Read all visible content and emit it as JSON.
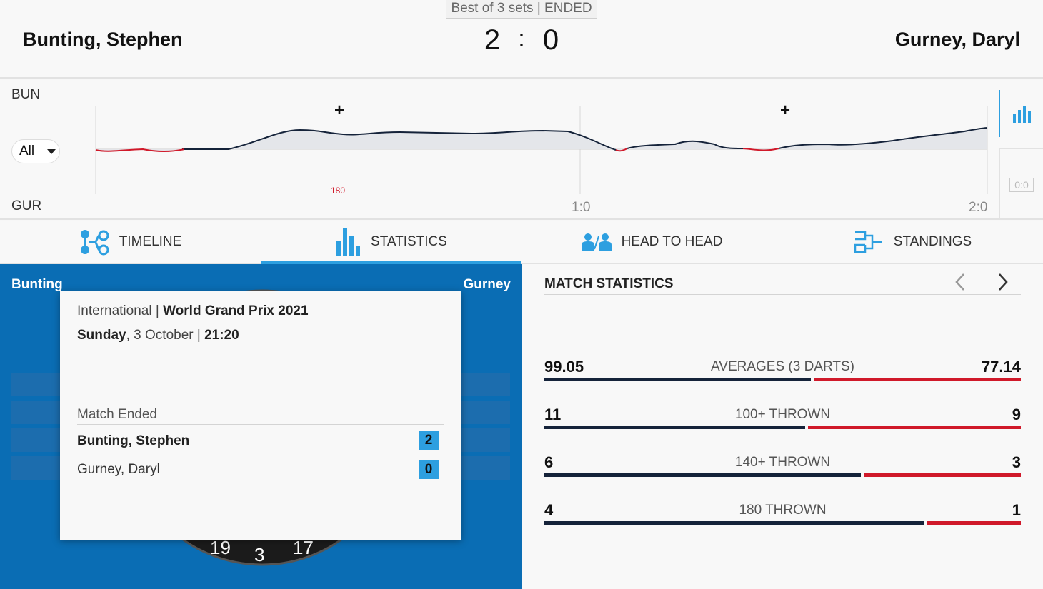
{
  "header": {
    "format_badge": "Best of 3 sets | ENDED",
    "home_name": "Bunting, Stephen",
    "away_name": "Gurney, Daryl",
    "home_score": "2",
    "separator": ":",
    "away_score": "0"
  },
  "momentum": {
    "home_abbr": "BUN",
    "away_abbr": "GUR",
    "filter": "All",
    "marker_180": "180",
    "set_labels": [
      "1:0",
      "2:0"
    ],
    "mini_score": "0:0"
  },
  "tabs": [
    {
      "label": "TIMELINE",
      "icon": "timeline-icon"
    },
    {
      "label": "STATISTICS",
      "icon": "bar-chart-icon",
      "active": true
    },
    {
      "label": "HEAD TO HEAD",
      "icon": "players-icon"
    },
    {
      "label": "STANDINGS",
      "icon": "bracket-icon"
    }
  ],
  "board_panel": {
    "home_short": "Bunting",
    "away_short": "Gurney",
    "dartboard_numbers": [
      "19",
      "3",
      "17"
    ]
  },
  "info_card": {
    "category": "International",
    "tournament": "World Grand Prix 2021",
    "day": "Sunday",
    "date": ", 3 October |",
    "time": "21:20",
    "status": "Match Ended",
    "home_player": "Bunting, Stephen",
    "home_sets": "2",
    "away_player": "Gurney, Daryl",
    "away_sets": "0"
  },
  "stats": {
    "title": "MATCH STATISTICS",
    "rows": [
      {
        "label": "AVERAGES (3 DARTS)",
        "home": "99.05",
        "away": "77.14",
        "home_share": 0.5622
      },
      {
        "label": "100+ THROWN",
        "home": "11",
        "away": "9",
        "home_share": 0.55
      },
      {
        "label": "140+ THROWN",
        "home": "6",
        "away": "3",
        "home_share": 0.6667
      },
      {
        "label": "180 THROWN",
        "home": "4",
        "away": "1",
        "home_share": 0.8
      }
    ]
  },
  "colors": {
    "accent": "#2d9fe0",
    "panel_blue": "#0a6db4",
    "home_bar": "#15233a",
    "away_bar": "#d0192a"
  }
}
